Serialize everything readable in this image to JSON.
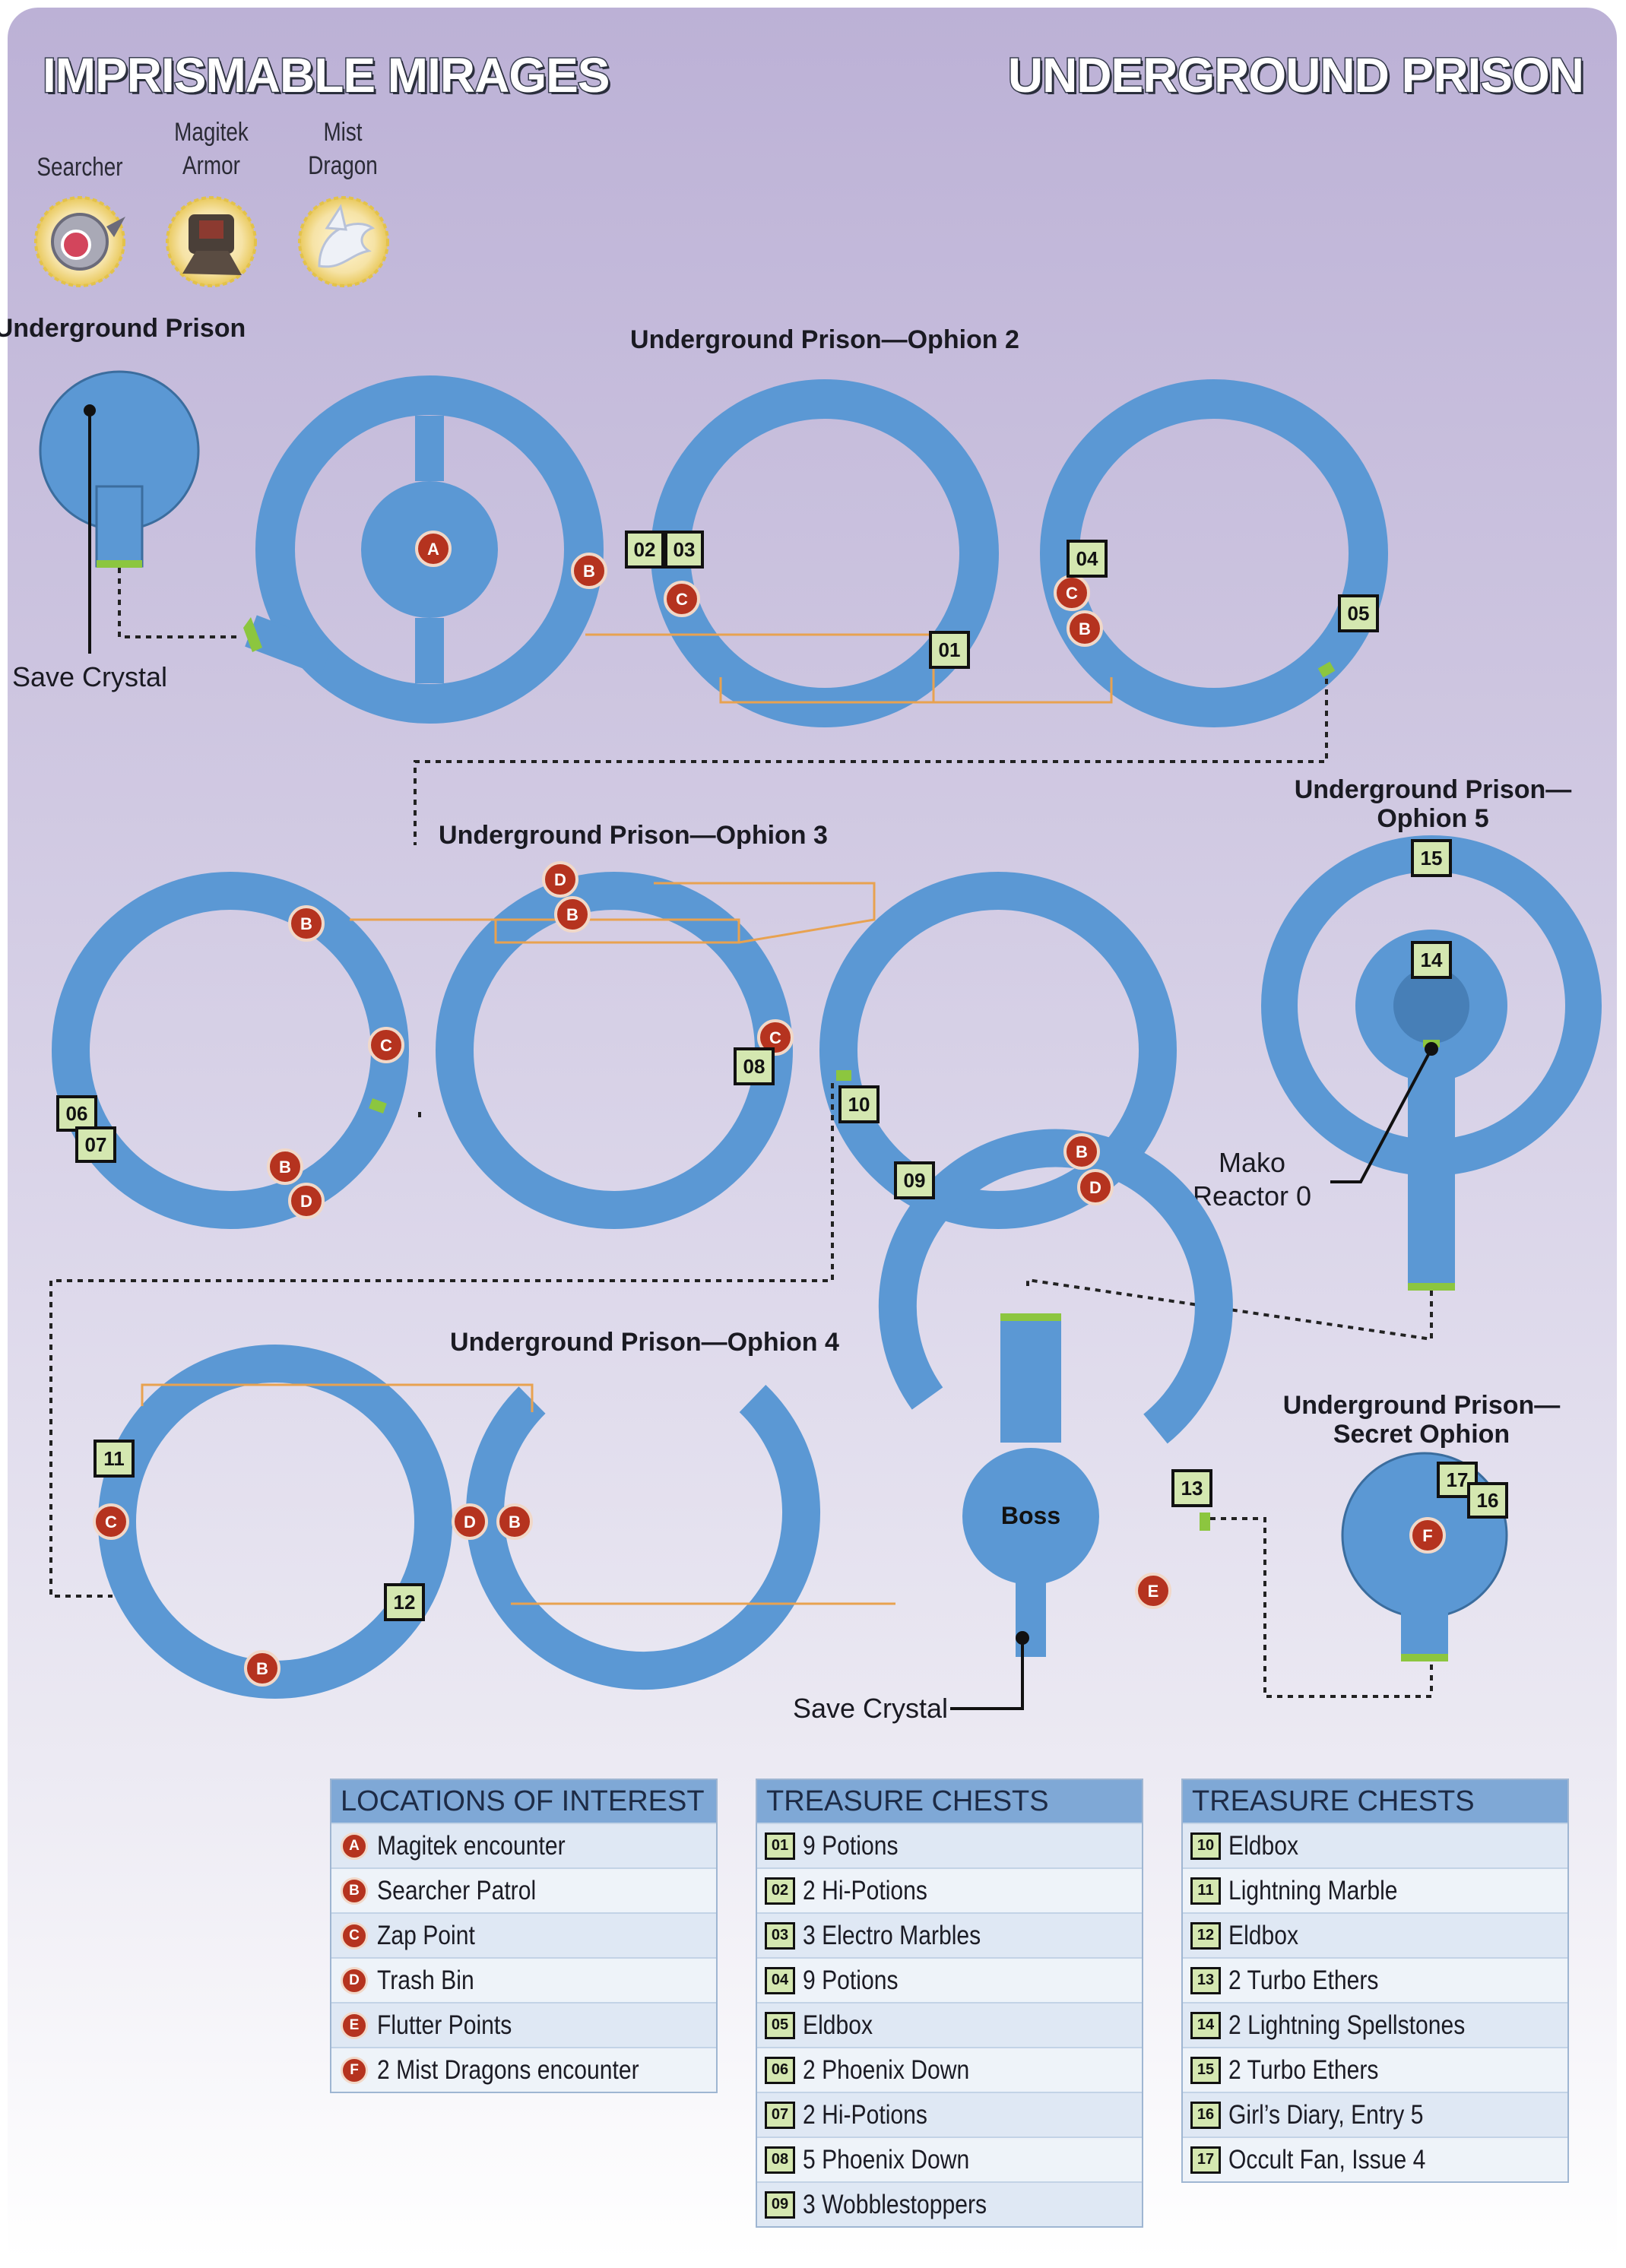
{
  "header": {
    "left_title": "IMPRISMABLE MIRAGES",
    "right_title": "UNDERGROUND PRISON"
  },
  "mirages": [
    {
      "name": "Searcher",
      "icon": "searcher-icon"
    },
    {
      "name": "Magitek Armor",
      "icon": "magitek-armor-icon"
    },
    {
      "name": "Mist Dragon",
      "icon": "mist-dragon-icon"
    }
  ],
  "map": {
    "areas": [
      "Underground Prison",
      "Underground Prison—Ophion 2",
      "Underground Prison—Ophion 3",
      "Underground Prison—Ophion 5",
      "Underground Prison—Ophion 4",
      "Underground Prison—Secret Ophion"
    ],
    "point_labels": {
      "save_crystal": "Save Crystal",
      "mako_reactor": "Mako Reactor 0",
      "boss": "Boss"
    }
  },
  "legend_locations": {
    "title": "LOCATIONS OF INTEREST",
    "items": [
      {
        "key": "A",
        "label": "Magitek encounter"
      },
      {
        "key": "B",
        "label": "Searcher Patrol"
      },
      {
        "key": "C",
        "label": "Zap Point"
      },
      {
        "key": "D",
        "label": "Trash Bin"
      },
      {
        "key": "E",
        "label": "Flutter Points"
      },
      {
        "key": "F",
        "label": "2 Mist Dragons encounter"
      }
    ]
  },
  "legend_chests_1": {
    "title": "TREASURE CHESTS",
    "items": [
      {
        "key": "01",
        "label": "9 Potions"
      },
      {
        "key": "02",
        "label": "2 Hi-Potions"
      },
      {
        "key": "03",
        "label": "3 Electro Marbles"
      },
      {
        "key": "04",
        "label": "9 Potions"
      },
      {
        "key": "05",
        "label": "Eldbox"
      },
      {
        "key": "06",
        "label": "2 Phoenix Down"
      },
      {
        "key": "07",
        "label": "2 Hi-Potions"
      },
      {
        "key": "08",
        "label": "5 Phoenix Down"
      },
      {
        "key": "09",
        "label": "3 Wobblestoppers"
      }
    ]
  },
  "legend_chests_2": {
    "title": "TREASURE CHESTS",
    "items": [
      {
        "key": "10",
        "label": "Eldbox"
      },
      {
        "key": "11",
        "label": "Lightning Marble"
      },
      {
        "key": "12",
        "label": "Eldbox"
      },
      {
        "key": "13",
        "label": "2 Turbo Ethers"
      },
      {
        "key": "14",
        "label": "2 Lightning Spellstones"
      },
      {
        "key": "15",
        "label": "2 Turbo Ethers"
      },
      {
        "key": "16",
        "label": "Girl’s Diary, Entry 5"
      },
      {
        "key": "17",
        "label": "Occult Fan, Issue 4"
      }
    ]
  }
}
